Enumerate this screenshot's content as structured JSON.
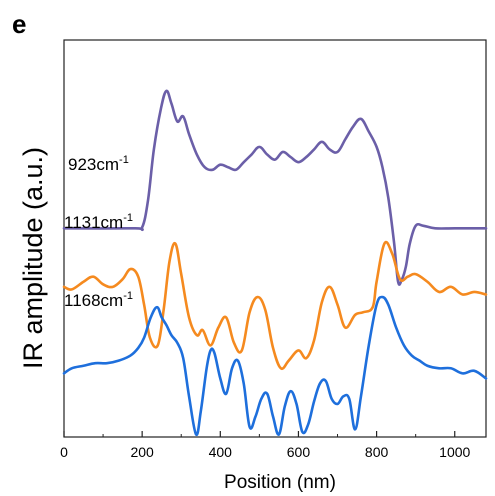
{
  "chart_data": {
    "type": "line",
    "panel_label": "e",
    "xlabel": "Position (nm)",
    "ylabel": "IR amplitude (a.u.)",
    "xlim": [
      0,
      1080
    ],
    "ylim": [
      -4.1,
      3.7
    ],
    "xticks": [
      "0",
      "200",
      "400",
      "600",
      "800",
      "1000"
    ],
    "xtick_values": [
      0,
      200,
      400,
      600,
      800,
      1000
    ],
    "colors": {
      "923": "#6b5fa8",
      "1131": "#f58a1f",
      "1168": "#1e6fdc"
    },
    "series": [
      {
        "name": "923cm-1",
        "label_text": "923cm",
        "label_sup": "-1",
        "color_key": "923",
        "x": [
          0,
          180,
          200,
          215,
          230,
          248,
          262,
          275,
          290,
          305,
          320,
          340,
          360,
          380,
          400,
          420,
          440,
          460,
          480,
          500,
          520,
          540,
          560,
          580,
          600,
          620,
          640,
          660,
          680,
          700,
          720,
          740,
          760,
          780,
          800,
          815,
          830,
          845,
          855,
          865,
          875,
          885,
          900,
          920,
          950,
          1000,
          1080
        ],
        "y": [
          0,
          0,
          0.02,
          0.55,
          1.55,
          2.35,
          2.7,
          2.45,
          2.1,
          2.2,
          1.85,
          1.45,
          1.2,
          1.15,
          1.25,
          1.2,
          1.15,
          1.3,
          1.45,
          1.6,
          1.45,
          1.35,
          1.5,
          1.4,
          1.3,
          1.4,
          1.55,
          1.7,
          1.55,
          1.5,
          1.75,
          2.0,
          2.15,
          1.9,
          1.6,
          1.2,
          0.6,
          -0.3,
          -1.05,
          -1.0,
          -0.75,
          -0.3,
          0.05,
          0.05,
          0.0,
          0.0,
          0.0
        ]
      },
      {
        "name": "1131cm-1",
        "label_text": "1131cm",
        "label_sup": "-1",
        "color_key": "1131",
        "x": [
          0,
          20,
          50,
          75,
          100,
          125,
          150,
          170,
          190,
          205,
          220,
          240,
          255,
          270,
          285,
          300,
          320,
          340,
          355,
          375,
          395,
          415,
          435,
          455,
          475,
          495,
          515,
          535,
          555,
          575,
          600,
          620,
          640,
          660,
          680,
          700,
          720,
          745,
          765,
          790,
          800,
          820,
          840,
          860,
          880,
          900,
          930,
          960,
          990,
          1020,
          1050,
          1080
        ],
        "y": [
          -1.15,
          -1.2,
          -1.05,
          -0.95,
          -1.1,
          -1.15,
          -1.0,
          -0.8,
          -0.95,
          -1.5,
          -2.15,
          -2.3,
          -1.6,
          -0.65,
          -0.3,
          -0.9,
          -1.75,
          -2.1,
          -2.0,
          -2.3,
          -1.95,
          -1.75,
          -2.25,
          -2.4,
          -1.65,
          -1.35,
          -1.6,
          -2.35,
          -2.75,
          -2.6,
          -2.4,
          -2.55,
          -2.2,
          -1.45,
          -1.15,
          -1.5,
          -1.95,
          -1.7,
          -1.65,
          -1.55,
          -1.05,
          -0.3,
          -0.5,
          -1.0,
          -0.95,
          -0.9,
          -1.05,
          -1.25,
          -1.15,
          -1.3,
          -1.25,
          -1.3
        ]
      },
      {
        "name": "1168cm-1",
        "label_text": "1168cm",
        "label_sup": "-1",
        "color_key": "1168",
        "x": [
          0,
          20,
          50,
          80,
          110,
          140,
          170,
          190,
          205,
          222,
          238,
          250,
          262,
          275,
          290,
          305,
          320,
          338,
          350,
          365,
          375,
          385,
          400,
          415,
          430,
          445,
          460,
          475,
          490,
          505,
          520,
          535,
          550,
          565,
          580,
          595,
          610,
          625,
          640,
          655,
          670,
          685,
          700,
          715,
          730,
          745,
          760,
          780,
          800,
          815,
          830,
          850,
          870,
          890,
          910,
          930,
          960,
          990,
          1020,
          1050,
          1080
        ],
        "y": [
          -2.85,
          -2.75,
          -2.7,
          -2.65,
          -2.65,
          -2.6,
          -2.5,
          -2.35,
          -2.15,
          -1.75,
          -1.55,
          -1.75,
          -1.9,
          -2.1,
          -2.25,
          -2.55,
          -3.3,
          -4.05,
          -3.6,
          -2.75,
          -2.4,
          -2.45,
          -2.95,
          -3.25,
          -2.75,
          -2.6,
          -3.05,
          -3.9,
          -3.7,
          -3.35,
          -3.25,
          -3.7,
          -4.05,
          -3.5,
          -3.2,
          -3.45,
          -4.0,
          -3.85,
          -3.4,
          -3.05,
          -3.0,
          -3.35,
          -3.45,
          -3.3,
          -3.35,
          -3.95,
          -3.3,
          -2.3,
          -1.5,
          -1.35,
          -1.5,
          -1.95,
          -2.3,
          -2.5,
          -2.6,
          -2.7,
          -2.75,
          -2.75,
          -2.85,
          -2.8,
          -2.95
        ]
      }
    ]
  }
}
